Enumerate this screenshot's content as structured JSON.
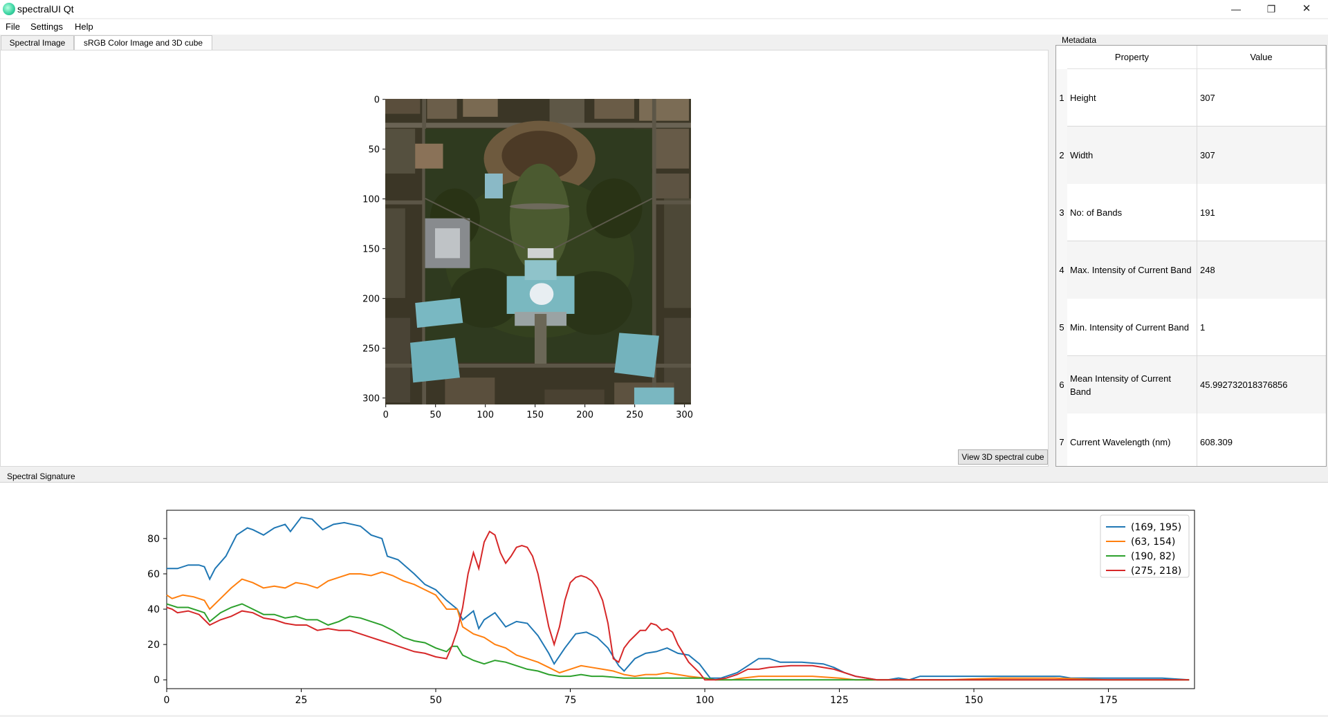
{
  "window": {
    "title": "spectralUI Qt",
    "minimize": "—",
    "restore": "❐",
    "close": "✕"
  },
  "menu": [
    "File",
    "Settings",
    "Help"
  ],
  "tabs": [
    "Spectral Image",
    "sRGB Color Image and 3D cube"
  ],
  "image_view": {
    "y_ticks": [
      "0",
      "50",
      "100",
      "150",
      "200",
      "250",
      "300"
    ],
    "x_ticks": [
      "0",
      "50",
      "100",
      "150",
      "200",
      "250",
      "300"
    ]
  },
  "view_button": "View 3D spectral cube",
  "metadata": {
    "title": "Metadata",
    "headers": [
      "Property",
      "Value"
    ],
    "rows": [
      {
        "n": "1",
        "property": "Height",
        "value": "307"
      },
      {
        "n": "2",
        "property": "Width",
        "value": "307"
      },
      {
        "n": "3",
        "property": "No: of Bands",
        "value": "191"
      },
      {
        "n": "4",
        "property": "Max. Intensity of Current Band",
        "value": "248"
      },
      {
        "n": "5",
        "property": "Min. Intensity of Current Band",
        "value": "1"
      },
      {
        "n": "6",
        "property": "Mean Intensity of Current Band",
        "value": "45.992732018376856"
      },
      {
        "n": "7",
        "property": "Current Wavelength (nm)",
        "value": "608.309"
      }
    ]
  },
  "spectral": {
    "title": "Spectral Signature"
  },
  "colors": {
    "blue": "#1f77b4",
    "orange": "#ff7f0e",
    "green": "#2ca02c",
    "red": "#d62728"
  },
  "chart_data": {
    "type": "line",
    "title": "",
    "xlabel": "",
    "ylabel": "",
    "xlim": [
      0,
      191
    ],
    "ylim": [
      -5,
      96
    ],
    "x_ticks": [
      0,
      25,
      50,
      75,
      100,
      125,
      150,
      175
    ],
    "y_ticks": [
      0,
      20,
      40,
      60,
      80
    ],
    "legend_position": "top-right",
    "series": [
      {
        "name": "(169, 195)",
        "color": "#1f77b4",
        "points": [
          [
            0,
            63
          ],
          [
            2,
            63
          ],
          [
            4,
            65
          ],
          [
            6,
            65
          ],
          [
            7,
            64
          ],
          [
            8,
            57
          ],
          [
            9,
            63
          ],
          [
            11,
            70
          ],
          [
            13,
            82
          ],
          [
            15,
            86
          ],
          [
            16,
            85
          ],
          [
            18,
            82
          ],
          [
            20,
            86
          ],
          [
            22,
            88
          ],
          [
            23,
            84
          ],
          [
            25,
            92
          ],
          [
            27,
            91
          ],
          [
            29,
            85
          ],
          [
            31,
            88
          ],
          [
            33,
            89
          ],
          [
            36,
            87
          ],
          [
            38,
            82
          ],
          [
            40,
            80
          ],
          [
            41,
            70
          ],
          [
            43,
            68
          ],
          [
            46,
            60
          ],
          [
            48,
            54
          ],
          [
            50,
            51
          ],
          [
            52,
            45
          ],
          [
            54,
            40
          ],
          [
            55,
            34
          ],
          [
            57,
            39
          ],
          [
            58,
            29
          ],
          [
            59,
            34
          ],
          [
            61,
            38
          ],
          [
            63,
            30
          ],
          [
            65,
            33
          ],
          [
            67,
            32
          ],
          [
            69,
            25
          ],
          [
            71,
            15
          ],
          [
            72,
            9
          ],
          [
            74,
            18
          ],
          [
            76,
            26
          ],
          [
            78,
            27
          ],
          [
            80,
            24
          ],
          [
            82,
            18
          ],
          [
            84,
            8
          ],
          [
            85,
            5
          ],
          [
            87,
            12
          ],
          [
            89,
            15
          ],
          [
            91,
            16
          ],
          [
            93,
            18
          ],
          [
            95,
            15
          ],
          [
            97,
            14
          ],
          [
            99,
            9
          ],
          [
            100,
            5
          ],
          [
            101,
            1
          ],
          [
            103,
            1
          ],
          [
            105,
            3
          ],
          [
            106,
            4
          ],
          [
            108,
            8
          ],
          [
            110,
            12
          ],
          [
            112,
            12
          ],
          [
            114,
            10
          ],
          [
            116,
            10
          ],
          [
            118,
            10
          ],
          [
            122,
            9
          ],
          [
            124,
            7
          ],
          [
            126,
            4
          ],
          [
            128,
            2
          ],
          [
            130,
            1
          ],
          [
            132,
            0
          ],
          [
            134,
            0
          ],
          [
            136,
            1
          ],
          [
            138,
            0
          ],
          [
            140,
            2
          ],
          [
            145,
            2
          ],
          [
            150,
            2
          ],
          [
            160,
            2
          ],
          [
            166,
            2
          ],
          [
            168,
            1
          ],
          [
            175,
            1
          ],
          [
            185,
            1
          ],
          [
            190,
            0
          ]
        ]
      },
      {
        "name": "(63, 154)",
        "color": "#ff7f0e",
        "points": [
          [
            0,
            48
          ],
          [
            1,
            46
          ],
          [
            3,
            48
          ],
          [
            5,
            47
          ],
          [
            7,
            45
          ],
          [
            8,
            40
          ],
          [
            10,
            46
          ],
          [
            12,
            52
          ],
          [
            14,
            57
          ],
          [
            16,
            55
          ],
          [
            18,
            52
          ],
          [
            20,
            53
          ],
          [
            22,
            52
          ],
          [
            24,
            55
          ],
          [
            26,
            54
          ],
          [
            28,
            52
          ],
          [
            30,
            56
          ],
          [
            32,
            58
          ],
          [
            34,
            60
          ],
          [
            36,
            60
          ],
          [
            38,
            59
          ],
          [
            40,
            61
          ],
          [
            42,
            59
          ],
          [
            44,
            56
          ],
          [
            46,
            54
          ],
          [
            48,
            51
          ],
          [
            50,
            48
          ],
          [
            51,
            44
          ],
          [
            52,
            40
          ],
          [
            54,
            40
          ],
          [
            55,
            30
          ],
          [
            57,
            26
          ],
          [
            59,
            24
          ],
          [
            61,
            20
          ],
          [
            63,
            18
          ],
          [
            65,
            14
          ],
          [
            67,
            12
          ],
          [
            69,
            10
          ],
          [
            71,
            7
          ],
          [
            73,
            4
          ],
          [
            75,
            6
          ],
          [
            77,
            8
          ],
          [
            79,
            7
          ],
          [
            81,
            6
          ],
          [
            83,
            5
          ],
          [
            85,
            3
          ],
          [
            87,
            2
          ],
          [
            89,
            3
          ],
          [
            91,
            3
          ],
          [
            93,
            4
          ],
          [
            95,
            3
          ],
          [
            97,
            2
          ],
          [
            100,
            1
          ],
          [
            102,
            0
          ],
          [
            105,
            0
          ],
          [
            107,
            1
          ],
          [
            110,
            2
          ],
          [
            115,
            2
          ],
          [
            120,
            2
          ],
          [
            125,
            1
          ],
          [
            128,
            0
          ],
          [
            135,
            0
          ],
          [
            145,
            0
          ],
          [
            155,
            1
          ],
          [
            165,
            1
          ],
          [
            175,
            0
          ],
          [
            190,
            0
          ]
        ]
      },
      {
        "name": "(190, 82)",
        "color": "#2ca02c",
        "points": [
          [
            0,
            43
          ],
          [
            2,
            41
          ],
          [
            4,
            41
          ],
          [
            6,
            39
          ],
          [
            7,
            38
          ],
          [
            8,
            33
          ],
          [
            10,
            38
          ],
          [
            12,
            41
          ],
          [
            14,
            43
          ],
          [
            16,
            40
          ],
          [
            18,
            37
          ],
          [
            20,
            37
          ],
          [
            22,
            35
          ],
          [
            24,
            36
          ],
          [
            26,
            34
          ],
          [
            28,
            34
          ],
          [
            30,
            31
          ],
          [
            32,
            33
          ],
          [
            34,
            36
          ],
          [
            36,
            35
          ],
          [
            38,
            33
          ],
          [
            40,
            31
          ],
          [
            42,
            28
          ],
          [
            44,
            24
          ],
          [
            46,
            22
          ],
          [
            48,
            21
          ],
          [
            50,
            18
          ],
          [
            52,
            16
          ],
          [
            53,
            19
          ],
          [
            54,
            19
          ],
          [
            55,
            14
          ],
          [
            57,
            11
          ],
          [
            59,
            9
          ],
          [
            61,
            11
          ],
          [
            63,
            10
          ],
          [
            65,
            8
          ],
          [
            67,
            6
          ],
          [
            69,
            5
          ],
          [
            71,
            3
          ],
          [
            73,
            2
          ],
          [
            75,
            2
          ],
          [
            77,
            3
          ],
          [
            79,
            2
          ],
          [
            81,
            2
          ],
          [
            85,
            1
          ],
          [
            90,
            1
          ],
          [
            95,
            1
          ],
          [
            100,
            1
          ],
          [
            102,
            0
          ],
          [
            110,
            0
          ],
          [
            120,
            0
          ],
          [
            130,
            0
          ],
          [
            150,
            0
          ],
          [
            170,
            0
          ],
          [
            190,
            0
          ]
        ]
      },
      {
        "name": "(275, 218)",
        "color": "#d62728",
        "points": [
          [
            0,
            41
          ],
          [
            1,
            40
          ],
          [
            2,
            38
          ],
          [
            4,
            39
          ],
          [
            6,
            37
          ],
          [
            8,
            31
          ],
          [
            10,
            34
          ],
          [
            12,
            36
          ],
          [
            14,
            39
          ],
          [
            16,
            38
          ],
          [
            18,
            35
          ],
          [
            20,
            34
          ],
          [
            22,
            32
          ],
          [
            24,
            31
          ],
          [
            26,
            31
          ],
          [
            28,
            28
          ],
          [
            30,
            29
          ],
          [
            32,
            28
          ],
          [
            34,
            28
          ],
          [
            36,
            26
          ],
          [
            38,
            24
          ],
          [
            40,
            22
          ],
          [
            42,
            20
          ],
          [
            44,
            18
          ],
          [
            46,
            16
          ],
          [
            48,
            15
          ],
          [
            50,
            13
          ],
          [
            52,
            12
          ],
          [
            53,
            19
          ],
          [
            54,
            28
          ],
          [
            55,
            41
          ],
          [
            56,
            60
          ],
          [
            57,
            72
          ],
          [
            58,
            63
          ],
          [
            59,
            78
          ],
          [
            60,
            84
          ],
          [
            61,
            82
          ],
          [
            62,
            72
          ],
          [
            63,
            66
          ],
          [
            64,
            70
          ],
          [
            65,
            75
          ],
          [
            66,
            76
          ],
          [
            67,
            75
          ],
          [
            68,
            70
          ],
          [
            69,
            60
          ],
          [
            70,
            45
          ],
          [
            71,
            30
          ],
          [
            72,
            20
          ],
          [
            73,
            30
          ],
          [
            74,
            45
          ],
          [
            75,
            55
          ],
          [
            76,
            58
          ],
          [
            77,
            59
          ],
          [
            78,
            58
          ],
          [
            79,
            56
          ],
          [
            80,
            52
          ],
          [
            81,
            45
          ],
          [
            82,
            32
          ],
          [
            83,
            12
          ],
          [
            84,
            10
          ],
          [
            85,
            18
          ],
          [
            86,
            22
          ],
          [
            87,
            25
          ],
          [
            88,
            28
          ],
          [
            89,
            28
          ],
          [
            90,
            32
          ],
          [
            91,
            31
          ],
          [
            92,
            28
          ],
          [
            93,
            29
          ],
          [
            94,
            27
          ],
          [
            95,
            20
          ],
          [
            97,
            10
          ],
          [
            99,
            4
          ],
          [
            100,
            0
          ],
          [
            102,
            0
          ],
          [
            104,
            1
          ],
          [
            106,
            3
          ],
          [
            108,
            6
          ],
          [
            110,
            6
          ],
          [
            112,
            7
          ],
          [
            116,
            8
          ],
          [
            120,
            8
          ],
          [
            124,
            6
          ],
          [
            128,
            2
          ],
          [
            132,
            0
          ],
          [
            140,
            0
          ],
          [
            150,
            0
          ],
          [
            160,
            0
          ],
          [
            170,
            0
          ],
          [
            180,
            0
          ],
          [
            190,
            0
          ]
        ]
      }
    ]
  }
}
